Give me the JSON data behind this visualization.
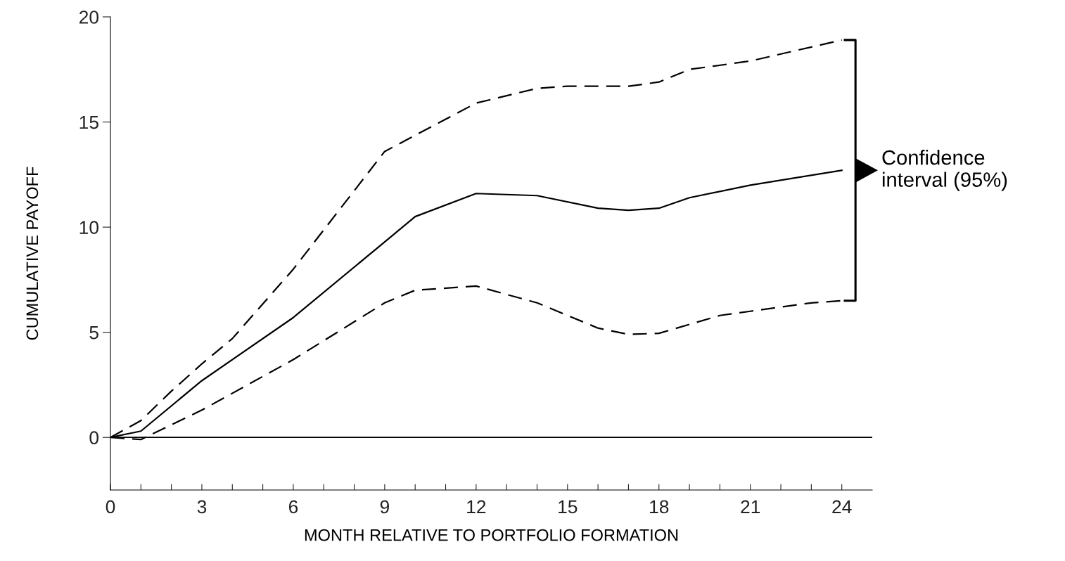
{
  "chart_data": {
    "type": "line",
    "xlabel": "MONTH RELATIVE TO PORTFOLIO FORMATION",
    "ylabel": "CUMULATIVE PAYOFF",
    "xlim": [
      0,
      25
    ],
    "ylim": [
      -2.5,
      20
    ],
    "xticks": [
      0,
      {
        "value": 1,
        "label": null
      },
      {
        "value": 2,
        "label": null
      },
      3,
      {
        "value": 4,
        "label": null
      },
      {
        "value": 5,
        "label": null
      },
      6,
      {
        "value": 7,
        "label": null
      },
      {
        "value": 8,
        "label": null
      },
      9,
      {
        "value": 10,
        "label": null
      },
      {
        "value": 11,
        "label": null
      },
      12,
      {
        "value": 13,
        "label": null
      },
      {
        "value": 14,
        "label": null
      },
      15,
      {
        "value": 16,
        "label": null
      },
      {
        "value": 17,
        "label": null
      },
      18,
      {
        "value": 19,
        "label": null
      },
      {
        "value": 20,
        "label": null
      },
      21,
      {
        "value": 22,
        "label": null
      },
      {
        "value": 23,
        "label": null
      },
      24
    ],
    "yticks": [
      0,
      5,
      10,
      15,
      20
    ],
    "grid": false,
    "legend": false,
    "marker": "none",
    "ref_lines": [
      {
        "axis": "y",
        "value": 0,
        "color": "#000000",
        "line_style": "solid"
      }
    ],
    "annotations": [
      "Confidence\ninterval (95%)"
    ],
    "series": [
      {
        "color": "#000000",
        "line_style": "dashed",
        "x": [
          0,
          1,
          2,
          3,
          4,
          6,
          9,
          12,
          14,
          15,
          17,
          18,
          19,
          21,
          24
        ],
        "values": [
          0,
          0.8,
          2.2,
          3.5,
          4.7,
          8.0,
          13.6,
          15.9,
          16.6,
          16.7,
          16.7,
          16.9,
          17.5,
          17.9,
          18.9
        ]
      },
      {
        "color": "#000000",
        "line_style": "solid",
        "x": [
          0,
          1,
          3,
          6,
          9,
          10,
          12,
          14,
          16,
          17,
          18,
          19,
          21,
          24
        ],
        "values": [
          0,
          0.3,
          2.7,
          5.7,
          9.3,
          10.5,
          11.6,
          11.5,
          10.9,
          10.8,
          10.9,
          11.4,
          12.0,
          12.7
        ]
      },
      {
        "color": "#000000",
        "line_style": "dashed",
        "x": [
          0,
          1,
          2,
          3,
          6,
          9,
          10,
          12,
          14,
          16,
          17,
          18,
          20,
          21,
          23,
          24
        ],
        "values": [
          0,
          -0.1,
          0.6,
          1.3,
          3.7,
          6.4,
          7.0,
          7.2,
          6.4,
          5.2,
          4.9,
          4.95,
          5.8,
          6.0,
          6.4,
          6.5
        ]
      }
    ]
  }
}
